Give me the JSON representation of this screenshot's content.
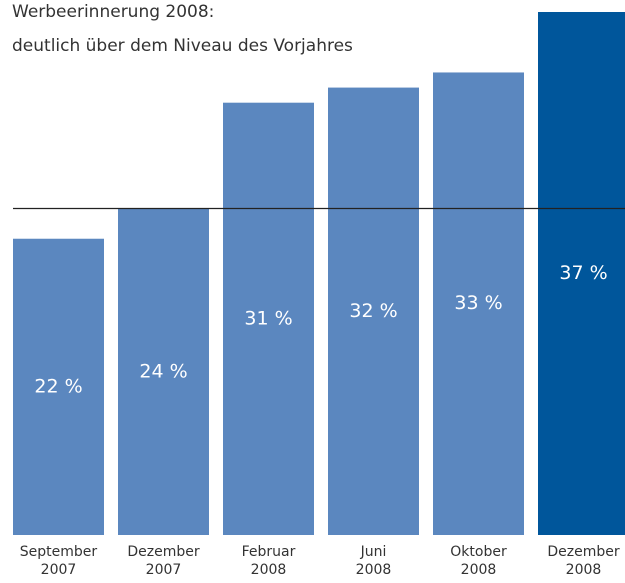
{
  "chart_data": {
    "type": "bar",
    "title": "Werbeerinnerung 2008:",
    "subtitle": "deutlich über dem Niveau des Vorjahres",
    "categories": [
      "September\n2007",
      "Dezember\n2007",
      "Februar\n2008",
      "Juni\n2008",
      "Oktober\n2008",
      "Dezember\n2008"
    ],
    "values": [
      22,
      24,
      31,
      32,
      33,
      37
    ],
    "value_labels": [
      "22 %",
      "24 %",
      "31 %",
      "32 %",
      "33 %",
      "37 %"
    ],
    "colors": [
      "#5b87bf",
      "#5b87bf",
      "#5b87bf",
      "#5b87bf",
      "#5b87bf",
      "#00569b"
    ],
    "reference_line": 24,
    "ylim": [
      2.4,
      37
    ]
  }
}
